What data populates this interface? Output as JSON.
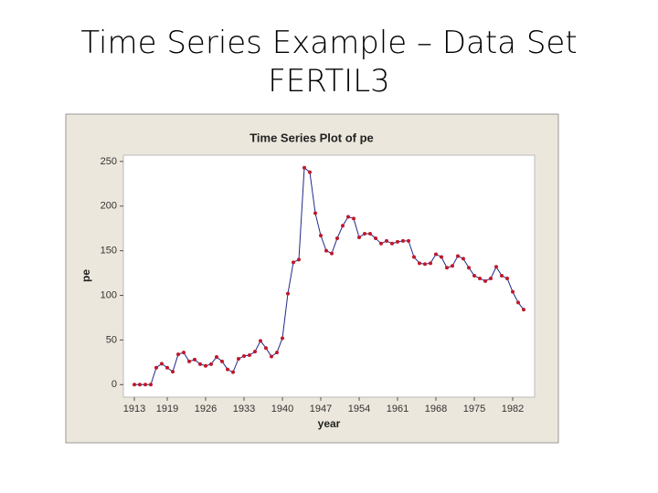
{
  "slide_title": [
    "Time Series Example – Data Set",
    "FERTIL3"
  ],
  "chart_data": {
    "type": "line",
    "title": "Time Series Plot of pe",
    "x_label": "year",
    "y_label": "pe",
    "color": "#1f2a8a",
    "marker_color": "#c0182a",
    "x": [
      1913,
      1914,
      1915,
      1916,
      1917,
      1918,
      1919,
      1920,
      1921,
      1922,
      1923,
      1924,
      1925,
      1926,
      1927,
      1928,
      1929,
      1930,
      1931,
      1932,
      1933,
      1934,
      1935,
      1936,
      1937,
      1938,
      1939,
      1940,
      1941,
      1942,
      1943,
      1944,
      1945,
      1946,
      1947,
      1948,
      1949,
      1950,
      1951,
      1952,
      1953,
      1954,
      1955,
      1956,
      1957,
      1958,
      1959,
      1960,
      1961,
      1962,
      1963,
      1964,
      1965,
      1966,
      1967,
      1968,
      1969,
      1970,
      1971,
      1972,
      1973,
      1974,
      1975,
      1976,
      1977,
      1978,
      1979,
      1980,
      1981,
      1982,
      1983,
      1984
    ],
    "values": [
      0,
      0,
      0,
      0,
      19,
      23.5,
      19,
      14.5,
      34,
      36,
      26,
      28,
      23,
      21,
      23,
      31,
      26,
      17,
      14,
      29,
      32,
      33,
      37,
      49,
      41,
      31.5,
      36,
      52,
      102,
      137,
      140,
      243,
      238,
      192,
      167,
      150,
      147,
      164,
      178,
      188,
      186,
      165,
      169,
      169,
      164,
      158,
      161,
      158,
      160,
      161,
      161,
      143,
      136,
      135,
      136,
      146,
      143,
      131,
      133,
      144,
      141,
      131,
      122,
      119,
      116,
      119,
      132,
      122,
      119,
      104,
      92,
      84
    ],
    "xlim": [
      1911,
      1986
    ],
    "ylim": [
      -14,
      257
    ],
    "xticks": [
      1913,
      1919,
      1926,
      1933,
      1940,
      1947,
      1954,
      1961,
      1968,
      1975,
      1982
    ],
    "yticks": [
      0,
      50,
      100,
      150,
      200,
      250
    ],
    "grid": false
  }
}
